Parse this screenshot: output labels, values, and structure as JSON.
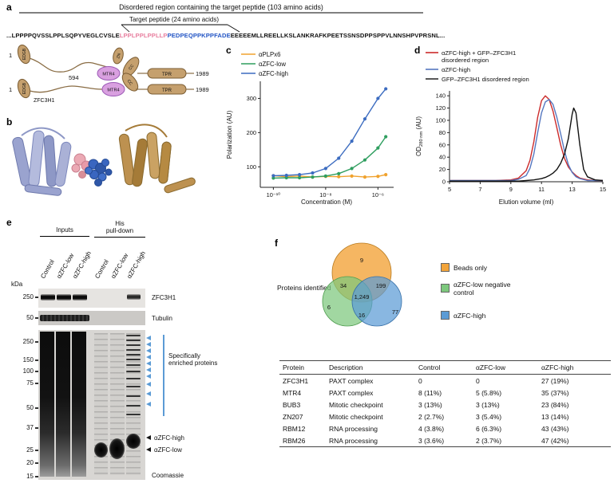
{
  "panel_labels": {
    "a": "a",
    "b": "b",
    "c": "c",
    "d": "d",
    "e": "e",
    "f": "f"
  },
  "panel_a": {
    "disordered_region_title": "Disordered region containing the target peptide (103 amino acids)",
    "target_peptide_title": "Target peptide (24 amino acids)",
    "sequence_prefix": "...LPPPPQVSSLPPLSQPYVEGLCVSLE",
    "sequence_pink": "LPPLPPLPPLLP",
    "sequence_blue": "PEDPEQPPKPPFADE",
    "sequence_suffix": "EEEEEMLLREELLKSLANKRAFKPEETSSNSDPPSPPVLNNSHPVPRSNL...",
    "sequence_pink_color": "#e87f9f",
    "sequence_blue_color": "#2456c5",
    "protein_name": "ZFC3H1",
    "residue_start": "1",
    "residue_mid": "594",
    "residue_end": "1989",
    "domain_edgb": "EDGB",
    "domain_zn": "ZN",
    "domain_cc": "CC",
    "domain_tpr": "TPR",
    "domain_mtr4": "MTR4"
  },
  "chart_data": [
    {
      "type": "scatter",
      "title": "",
      "xlabel": "Concentration (M)",
      "ylabel": "Polarization (AU)",
      "xscale": "log10 (values stored as exponents of 10)",
      "xlim": [
        -10.5,
        -5.4
      ],
      "ylim": [
        40,
        350
      ],
      "xticks": [
        "10⁻¹⁰",
        "10⁻⁸",
        "10⁻⁶"
      ],
      "xtick_vals": [
        -10,
        -8,
        -6
      ],
      "yticks": [
        "100",
        "200",
        "300"
      ],
      "ytick_vals": [
        100,
        200,
        300
      ],
      "grid": false,
      "legend_position": "top-left",
      "series": [
        {
          "name": "αPLPx6",
          "color": "#f0a22e",
          "markers": true,
          "x": [
            -10,
            -9.5,
            -9,
            -8.5,
            -8,
            -7.5,
            -7,
            -6.5,
            -6,
            -5.7
          ],
          "y": [
            74,
            71,
            73,
            70,
            72,
            71,
            73,
            70,
            72,
            77
          ]
        },
        {
          "name": "αZFC-low",
          "color": "#2f9e5f",
          "markers": true,
          "x": [
            -10,
            -9.5,
            -9,
            -8.5,
            -8,
            -7.5,
            -7,
            -6.5,
            -6,
            -5.7
          ],
          "y": [
            67,
            68,
            68,
            70,
            73,
            80,
            95,
            120,
            155,
            188
          ]
        },
        {
          "name": "αZFC-high",
          "color": "#3c6cc0",
          "markers": true,
          "x": [
            -10,
            -9.5,
            -9,
            -8.5,
            -8,
            -7.5,
            -7,
            -6.5,
            -6,
            -5.7
          ],
          "y": [
            74,
            75,
            77,
            82,
            95,
            125,
            175,
            240,
            300,
            328
          ]
        }
      ]
    },
    {
      "type": "line",
      "title": "",
      "xlabel": "Elution volume (ml)",
      "ylabel": "OD280 nm (AU)",
      "ylabel_parts": {
        "main": "OD",
        "sub": "280 nm",
        "rest": " (AU)"
      },
      "xlim": [
        5,
        15
      ],
      "ylim": [
        0,
        148
      ],
      "xticks": [
        "5",
        "7",
        "9",
        "11",
        "13",
        "15"
      ],
      "xtick_vals": [
        5,
        7,
        9,
        11,
        13,
        15
      ],
      "yticks": [
        "0",
        "20",
        "40",
        "60",
        "80",
        "100",
        "120",
        "140"
      ],
      "ytick_vals": [
        0,
        20,
        40,
        60,
        80,
        100,
        120,
        140
      ],
      "grid": false,
      "legend_position": "top-left",
      "legend": {
        "red_line1": "αZFC-high + GFP–ZFC3H1",
        "red_line2": "disordered region",
        "blue": "αZFC-high",
        "black": "GFP–ZFC3H1 disordered region"
      },
      "series": [
        {
          "name": "αZFC-high + GFP–ZFC3H1 disordered region",
          "color": "#cc2b2b",
          "markers": false,
          "x": [
            5,
            6,
            7,
            8,
            9,
            9.5,
            10,
            10.25,
            10.5,
            10.75,
            11,
            11.25,
            11.5,
            11.75,
            12,
            12.25,
            12.5,
            12.75,
            13,
            13.25,
            13.5,
            14,
            14.5,
            15
          ],
          "y": [
            2,
            2,
            2,
            2,
            3,
            6,
            18,
            35,
            65,
            105,
            132,
            140,
            134,
            115,
            88,
            60,
            38,
            24,
            16,
            10,
            6,
            3,
            2,
            2
          ]
        },
        {
          "name": "αZFC-high",
          "color": "#5577c0",
          "markers": false,
          "x": [
            5,
            6,
            7,
            8,
            9,
            9.5,
            10,
            10.25,
            10.5,
            10.75,
            11,
            11.25,
            11.5,
            11.75,
            12,
            12.25,
            12.5,
            12.75,
            13,
            13.25,
            13.5,
            14,
            14.5,
            15
          ],
          "y": [
            2,
            2,
            2,
            2,
            2,
            4,
            10,
            22,
            45,
            80,
            112,
            130,
            134,
            126,
            105,
            78,
            50,
            28,
            15,
            8,
            5,
            2,
            2,
            2
          ]
        },
        {
          "name": "GFP–ZFC3H1 disordered region",
          "color": "#111111",
          "markers": false,
          "x": [
            5,
            6,
            7,
            8,
            9,
            9.5,
            10,
            10.5,
            11,
            11.25,
            11.5,
            11.75,
            12,
            12.25,
            12.5,
            12.75,
            13,
            13.1,
            13.25,
            13.5,
            13.75,
            14,
            14.5,
            15
          ],
          "y": [
            1,
            1,
            1,
            1,
            1,
            1,
            2,
            3,
            5,
            7,
            10,
            14,
            20,
            30,
            45,
            70,
            110,
            120,
            112,
            60,
            20,
            8,
            3,
            2
          ]
        }
      ]
    }
  ],
  "panel_e": {
    "group_inputs": "Inputs",
    "group_his_line1": "His",
    "group_his_line2": "pull-down",
    "lanes": [
      "Control",
      "αZFC-low",
      "αZFC-high",
      "Control",
      "αZFC-low",
      "αZFC-high"
    ],
    "kda_label": "kDa",
    "blot1_marker": "250",
    "blot2_marker": "50",
    "gel_markers": [
      "250",
      "150",
      "100",
      "75",
      "50",
      "37",
      "25",
      "20",
      "15"
    ],
    "band_zfc3h1": "ZFC3H1",
    "band_tubulin": "Tubulin",
    "enriched_label": "Specifically enriched proteins",
    "arrow_high_label": "αZFC-high",
    "arrow_low_label": "αZFC-low",
    "stain_label": "Coomassie",
    "arrow_color": "#5b9bd5"
  },
  "panel_f": {
    "venn_title": "Proteins identified",
    "venn": {
      "beads_only": "9",
      "beads_and_green": "34",
      "beads_and_blue": "199",
      "center": "1,249",
      "green_only": "6",
      "green_and_blue": "16",
      "blue_only": "77",
      "orange_color": "#f2a43b",
      "green_color": "#7dc87d",
      "blue_color": "#5b9bd5"
    },
    "legend": [
      {
        "label": "Beads only",
        "color": "#f2a43b"
      },
      {
        "label": "αZFC-low negative control",
        "color": "#7dc87d"
      },
      {
        "label": "αZFC-high",
        "color": "#5b9bd5"
      }
    ],
    "table": {
      "headers": [
        "Protein",
        "Description",
        "Control",
        "αZFC-low",
        "αZFC-high"
      ],
      "rows": [
        [
          "ZFC3H1",
          "PAXT complex",
          "0",
          "0",
          "27 (19%)"
        ],
        [
          "MTR4",
          "PAXT complex",
          "8 (11%)",
          "5 (5.8%)",
          "35 (37%)"
        ],
        [
          "BUB3",
          "Mitotic checkpoint",
          "3 (13%)",
          "3 (13%)",
          "23 (84%)"
        ],
        [
          "ZN207",
          "Mitotic checkpoint",
          "2 (2.7%)",
          "3 (5.4%)",
          "13 (14%)"
        ],
        [
          "RBM12",
          "RNA processing",
          "4 (3.8%)",
          "6 (6.3%)",
          "43 (43%)"
        ],
        [
          "RBM26",
          "RNA processing",
          "3 (3.6%)",
          "2 (3.7%)",
          "47 (42%)"
        ]
      ]
    }
  }
}
